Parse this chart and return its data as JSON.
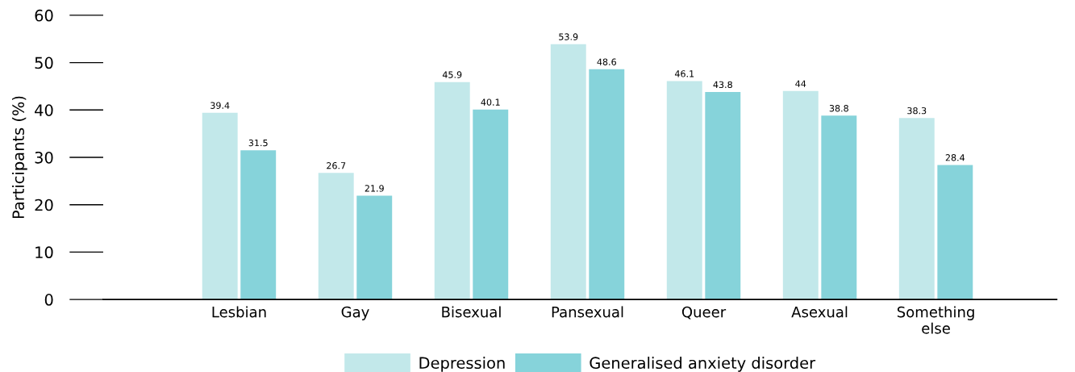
{
  "chart_data": {
    "type": "bar",
    "ylabel": "Participants (%)",
    "categories": [
      "Lesbian",
      "Gay",
      "Bisexual",
      "Pansexual",
      "Queer",
      "Asexual",
      "Something\nelse"
    ],
    "series": [
      {
        "name": "Depression",
        "color": "#c2e8ea",
        "values": [
          39.4,
          26.7,
          45.9,
          53.9,
          46.1,
          44,
          38.3
        ]
      },
      {
        "name": "Generalised anxiety disorder",
        "color": "#86d3da",
        "values": [
          31.5,
          21.9,
          40.1,
          48.6,
          43.8,
          38.8,
          28.4
        ]
      }
    ],
    "ylim": [
      0,
      60
    ],
    "yticks": [
      0,
      10,
      20,
      30,
      40,
      50,
      60
    ],
    "data_labels": true,
    "grid": false,
    "legend": "bottom"
  }
}
